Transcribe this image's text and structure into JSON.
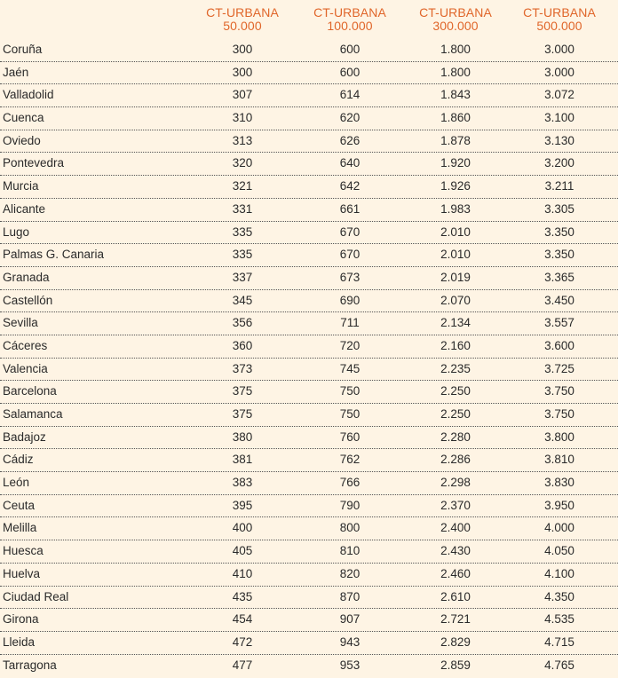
{
  "columns": [
    {
      "line1": "CT-URBANA",
      "line2": "50.000"
    },
    {
      "line1": "CT-URBANA",
      "line2": "100.000"
    },
    {
      "line1": "CT-URBANA",
      "line2": "300.000"
    },
    {
      "line1": "CT-URBANA",
      "line2": "500.000"
    }
  ],
  "rows": [
    {
      "city": "Coruña",
      "v": [
        "300",
        "600",
        "1.800",
        "3.000"
      ]
    },
    {
      "city": "Jaén",
      "v": [
        "300",
        "600",
        "1.800",
        "3.000"
      ]
    },
    {
      "city": "Valladolid",
      "v": [
        "307",
        "614",
        "1.843",
        "3.072"
      ]
    },
    {
      "city": "Cuenca",
      "v": [
        "310",
        "620",
        "1.860",
        "3.100"
      ]
    },
    {
      "city": "Oviedo",
      "v": [
        "313",
        "626",
        "1.878",
        "3.130"
      ]
    },
    {
      "city": "Pontevedra",
      "v": [
        "320",
        "640",
        "1.920",
        "3.200"
      ]
    },
    {
      "city": "Murcia",
      "v": [
        "321",
        "642",
        "1.926",
        "3.211"
      ]
    },
    {
      "city": "Alicante",
      "v": [
        "331",
        "661",
        "1.983",
        "3.305"
      ]
    },
    {
      "city": "Lugo",
      "v": [
        "335",
        "670",
        "2.010",
        "3.350"
      ]
    },
    {
      "city": "Palmas G. Canaria",
      "v": [
        "335",
        "670",
        "2.010",
        "3.350"
      ]
    },
    {
      "city": "Granada",
      "v": [
        "337",
        "673",
        "2.019",
        "3.365"
      ]
    },
    {
      "city": "Castellón",
      "v": [
        "345",
        "690",
        "2.070",
        "3.450"
      ]
    },
    {
      "city": "Sevilla",
      "v": [
        "356",
        "711",
        "2.134",
        "3.557"
      ]
    },
    {
      "city": "Cáceres",
      "v": [
        "360",
        "720",
        "2.160",
        "3.600"
      ]
    },
    {
      "city": "Valencia",
      "v": [
        "373",
        "745",
        "2.235",
        "3.725"
      ]
    },
    {
      "city": "Barcelona",
      "v": [
        "375",
        "750",
        "2.250",
        "3.750"
      ]
    },
    {
      "city": "Salamanca",
      "v": [
        "375",
        "750",
        "2.250",
        "3.750"
      ]
    },
    {
      "city": "Badajoz",
      "v": [
        "380",
        "760",
        "2.280",
        "3.800"
      ]
    },
    {
      "city": "Cádiz",
      "v": [
        "381",
        "762",
        "2.286",
        "3.810"
      ]
    },
    {
      "city": "León",
      "v": [
        "383",
        "766",
        "2.298",
        "3.830"
      ]
    },
    {
      "city": "Ceuta",
      "v": [
        "395",
        "790",
        "2.370",
        "3.950"
      ]
    },
    {
      "city": "Melilla",
      "v": [
        "400",
        "800",
        "2.400",
        "4.000"
      ]
    },
    {
      "city": "Huesca",
      "v": [
        "405",
        "810",
        "2.430",
        "4.050"
      ]
    },
    {
      "city": "Huelva",
      "v": [
        "410",
        "820",
        "2.460",
        "4.100"
      ]
    },
    {
      "city": "Ciudad Real",
      "v": [
        "435",
        "870",
        "2.610",
        "4.350"
      ]
    },
    {
      "city": "Girona",
      "v": [
        "454",
        "907",
        "2.721",
        "4.535"
      ]
    },
    {
      "city": "Lleida",
      "v": [
        "472",
        "943",
        "2.829",
        "4.715"
      ]
    },
    {
      "city": "Tarragona",
      "v": [
        "477",
        "953",
        "2.859",
        "4.765"
      ]
    }
  ]
}
